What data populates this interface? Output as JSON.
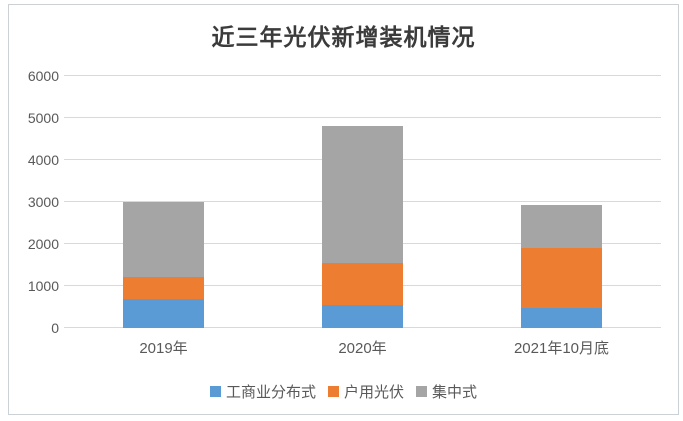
{
  "chart": {
    "title": "近三年光伏新增装机情况",
    "colors": {
      "grid": "#d9d9d9",
      "axis_text": "#595959",
      "title_text": "#3b3b3b",
      "card_border": "#ccd1d6",
      "background": "#ffffff"
    }
  },
  "chart_data": {
    "type": "bar",
    "stacked": true,
    "title": "近三年光伏新增装机情况",
    "categories": [
      "2019年",
      "2020年",
      "2021年10月底"
    ],
    "series": [
      {
        "name": "工商业分布式",
        "color": "#5b9bd5",
        "values": [
          683,
          542,
          481
        ]
      },
      {
        "name": "户用光伏",
        "color": "#ed7d31",
        "values": [
          532,
          1010,
          1415
        ]
      },
      {
        "name": "集中式",
        "color": "#a5a5a5",
        "values": [
          1791,
          3268,
          1035
        ]
      }
    ],
    "totals": [
      3006,
      4820,
      2931
    ],
    "xlabel": "",
    "ylabel": "",
    "ylim": [
      0,
      6000
    ],
    "yticks": [
      0,
      1000,
      2000,
      3000,
      4000,
      5000,
      6000
    ],
    "grid": "horizontal",
    "legend_position": "bottom"
  }
}
